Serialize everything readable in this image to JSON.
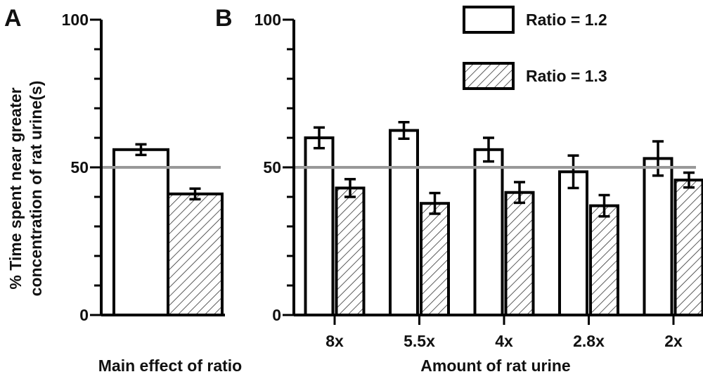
{
  "chart_data": [
    {
      "panel": "A",
      "type": "bar",
      "categories": [
        "Ratio = 1.2",
        "Ratio = 1.3"
      ],
      "values": [
        56,
        41
      ],
      "errors": [
        1.8,
        1.8
      ],
      "reference_line": 50,
      "xlabel": "Main effect of ratio",
      "ylabel": "% Time spent near greater concentration of rat urine(s)",
      "ylim": [
        0,
        100
      ],
      "yticks": [
        "0",
        "50",
        "100"
      ]
    },
    {
      "panel": "B",
      "type": "bar",
      "categories": [
        "8x",
        "5.5x",
        "4x",
        "2.8x",
        "2x"
      ],
      "series": [
        {
          "name": "Ratio = 1.2",
          "values": [
            60,
            62.5,
            56,
            48.5,
            53
          ],
          "errors": [
            3.5,
            2.8,
            4.0,
            5.5,
            5.8
          ],
          "fill": "#ffffff"
        },
        {
          "name": "Ratio = 1.3",
          "values": [
            43,
            37.8,
            41.5,
            37,
            45.7
          ],
          "errors": [
            3.0,
            3.5,
            3.5,
            3.6,
            2.5
          ],
          "fill": "hatched"
        }
      ],
      "reference_line": 50,
      "xlabel": "Amount of rat urine",
      "ylim": [
        0,
        100
      ],
      "yticks": [
        "0",
        "50",
        "100"
      ],
      "legend_position": "top-right"
    }
  ],
  "colors": {
    "axis": "#000000",
    "reference_line": "#999999",
    "hatch": "#333333"
  }
}
